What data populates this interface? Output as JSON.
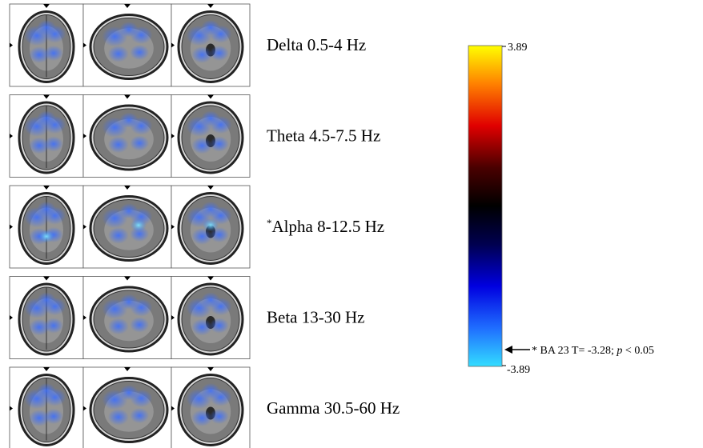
{
  "figure": {
    "rows": [
      {
        "label": "Delta 0.5-4 Hz"
      },
      {
        "label": "Theta 4.5-7.5 Hz"
      },
      {
        "marker": "*",
        "label": "Alpha 8-12.5 Hz"
      },
      {
        "label": "Beta 13-30 Hz"
      },
      {
        "label": "Gamma 30.5-60 Hz"
      }
    ],
    "colorbar": {
      "max_label": "3.89",
      "min_label": "-3.89"
    },
    "annotation": {
      "prefix": "* BA 23 T= -3.28; ",
      "italic": "p",
      "suffix": " < 0.05"
    }
  }
}
